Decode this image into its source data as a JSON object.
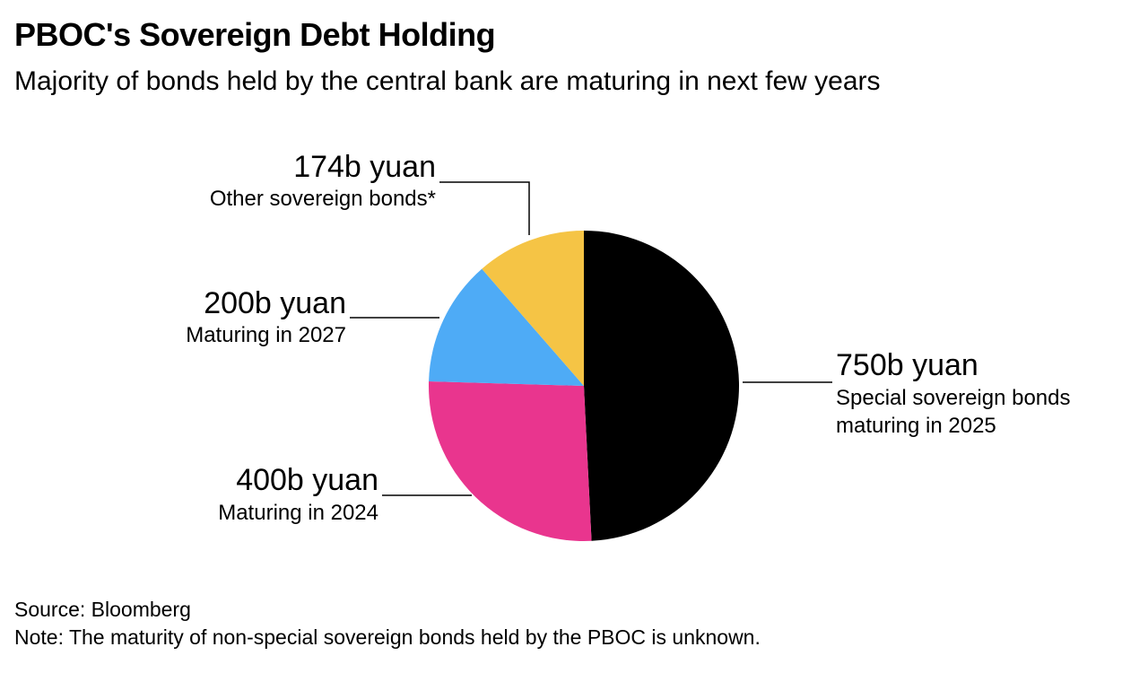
{
  "chart_data": {
    "type": "pie",
    "title": "PBOC's Sovereign Debt Holding",
    "subtitle": "Majority of bonds held by the central bank are maturing in next few years",
    "categories": [
      "Special sovereign bonds maturing in 2025",
      "Maturing in 2024",
      "Maturing in 2027",
      "Other sovereign bonds*"
    ],
    "values": [
      750,
      400,
      200,
      174
    ],
    "value_labels": [
      "750b yuan",
      "400b yuan",
      "200b yuan",
      "174b yuan"
    ],
    "colors": [
      "#000000",
      "#e9358e",
      "#4eabf6",
      "#f5c445"
    ],
    "source": "Source: Bloomberg",
    "note": "Note: The maturity of non-special sovereign bonds held by the PBOC is unknown."
  }
}
